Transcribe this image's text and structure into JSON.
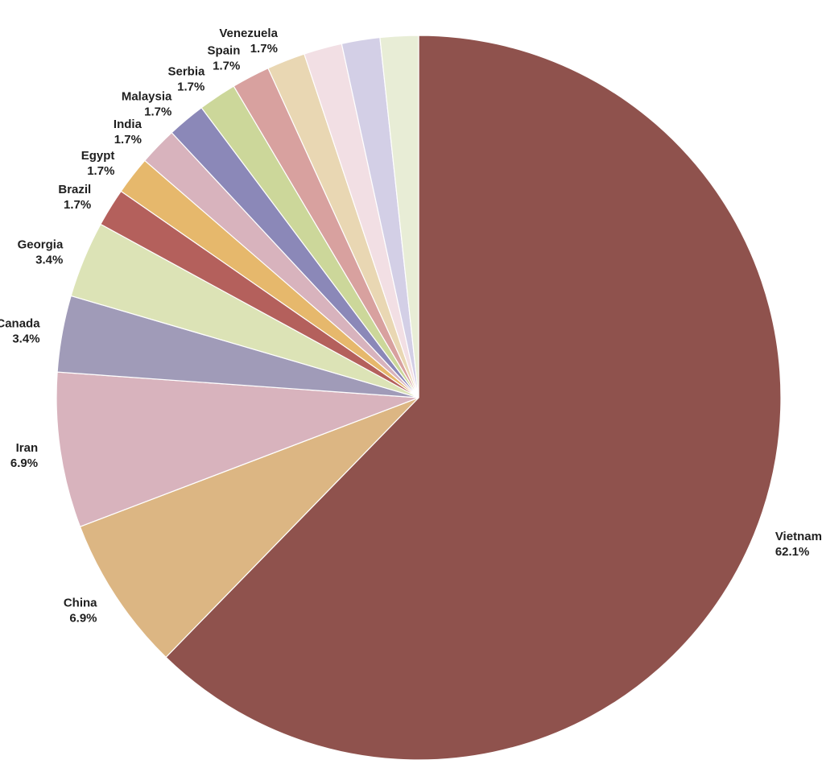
{
  "chart_data": {
    "type": "pie",
    "title": "",
    "start_angle": "12 o'clock",
    "direction": "clockwise",
    "slices": [
      {
        "label": "Vietnam",
        "value": 62.1,
        "display": "62.1%",
        "color": "#8f524d"
      },
      {
        "label": "China",
        "value": 6.9,
        "display": "6.9%",
        "color": "#dcb683"
      },
      {
        "label": "Iran",
        "value": 6.9,
        "display": "6.9%",
        "color": "#d8b3bd"
      },
      {
        "label": "Canada",
        "value": 3.4,
        "display": "3.4%",
        "color": "#a09bb8"
      },
      {
        "label": "Georgia",
        "value": 3.4,
        "display": "3.4%",
        "color": "#dce3b6"
      },
      {
        "label": "Brazil",
        "value": 1.7,
        "display": "1.7%",
        "color": "#b4605c"
      },
      {
        "label": "Egypt",
        "value": 1.7,
        "display": "1.7%",
        "color": "#e6b86c"
      },
      {
        "label": "India",
        "value": 1.7,
        "display": "1.7%",
        "color": "#d8b3bd"
      },
      {
        "label": "Malaysia",
        "value": 1.7,
        "display": "1.7%",
        "color": "#8b88b8"
      },
      {
        "label": "Serbia",
        "value": 1.7,
        "display": "1.7%",
        "color": "#ccd79a"
      },
      {
        "label": "Spain",
        "value": 1.7,
        "display": "1.7%",
        "color": "#d8a19f"
      },
      {
        "label": "Venezuela",
        "value": 1.7,
        "display": "1.7%",
        "color": "#e9d7b3"
      },
      {
        "label": "",
        "value": 1.7,
        "display": "",
        "color": "#f2dfe4"
      },
      {
        "label": "",
        "value": 1.7,
        "display": "",
        "color": "#d3cfe6"
      },
      {
        "label": "",
        "value": 1.7,
        "display": "",
        "color": "#e8edd6"
      }
    ]
  }
}
